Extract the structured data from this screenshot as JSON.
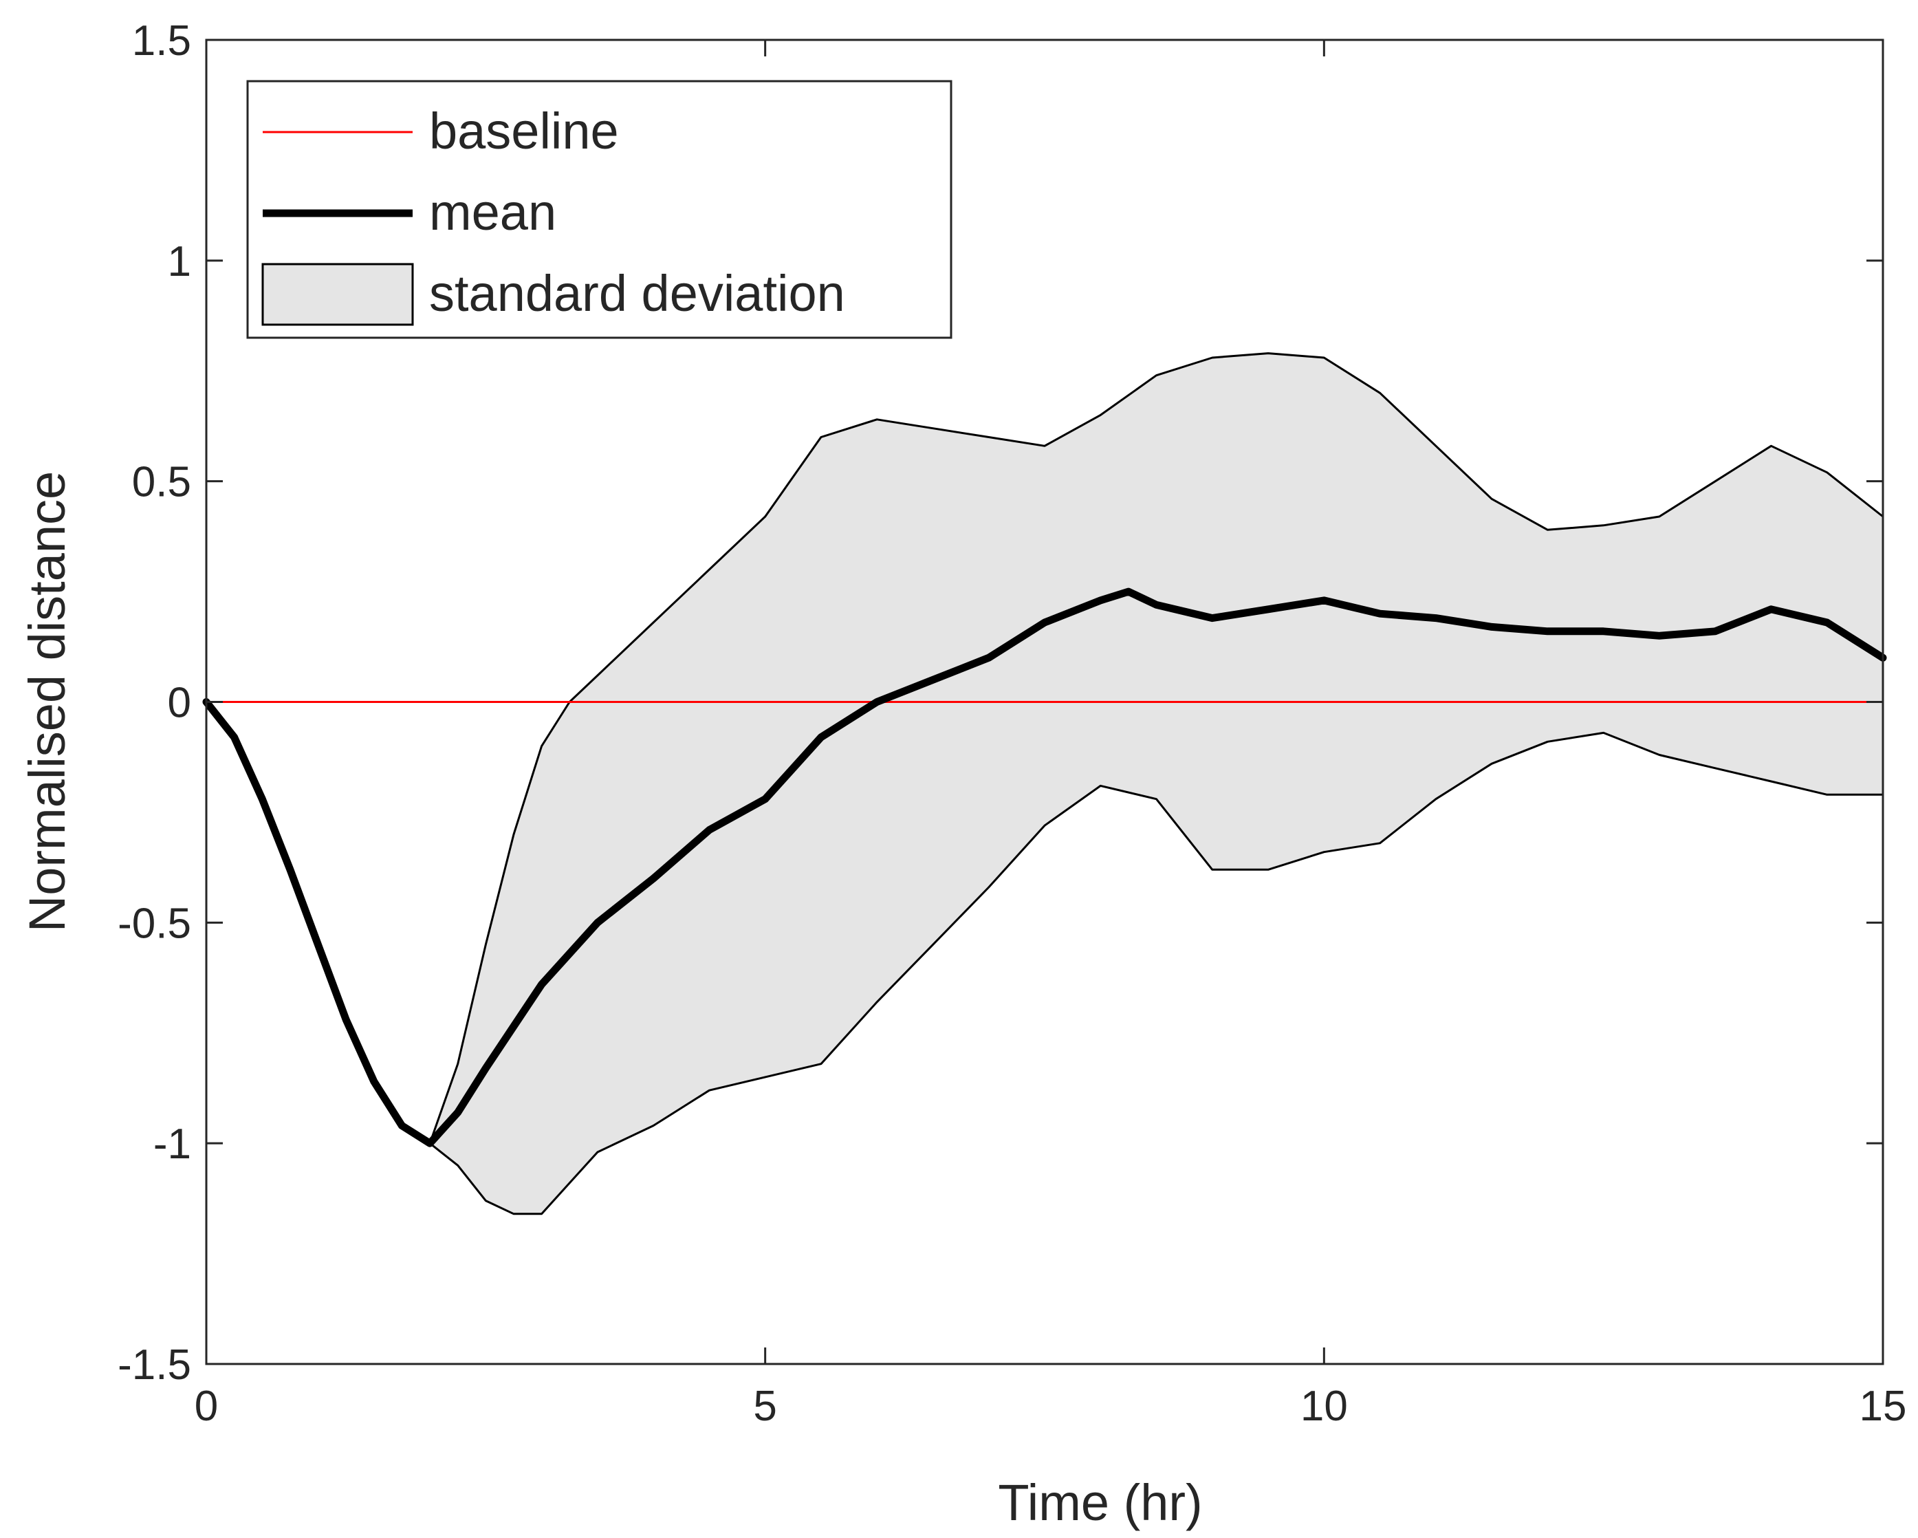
{
  "chart_data": {
    "type": "line",
    "title": "",
    "xlabel": "Time (hr)",
    "ylabel": "Normalised distance",
    "xlim": [
      0,
      15
    ],
    "ylim": [
      -1.5,
      1.5
    ],
    "xticks": [
      0,
      5,
      10,
      15
    ],
    "yticks": [
      -1.5,
      -1,
      -0.5,
      0,
      0.5,
      1,
      1.5
    ],
    "x_tick_labels": [
      "0",
      "5",
      "10",
      "15"
    ],
    "y_tick_labels": [
      "-1.5",
      "-1",
      "-0.5",
      "0",
      "0.5",
      "1",
      "1.5"
    ],
    "grid": false,
    "legend_position": "top-left",
    "legend": [
      "baseline",
      "mean",
      "standard deviation"
    ],
    "series": [
      {
        "name": "baseline",
        "style": "thin-red-line",
        "color": "#ff0000",
        "x": [
          0,
          15
        ],
        "y": [
          0,
          0
        ]
      },
      {
        "name": "mean",
        "style": "thick-black-line",
        "color": "#000000",
        "x": [
          0,
          0.25,
          0.5,
          0.75,
          1.0,
          1.25,
          1.5,
          1.75,
          2.0,
          2.25,
          2.5,
          3.0,
          3.5,
          4.0,
          4.5,
          5.0,
          5.5,
          6.0,
          6.5,
          7.0,
          7.5,
          8.0,
          8.25,
          8.5,
          9.0,
          9.5,
          10.0,
          10.5,
          11.0,
          11.5,
          12.0,
          12.5,
          13.0,
          13.5,
          14.0,
          14.5,
          15.0
        ],
        "y": [
          0,
          -0.08,
          -0.22,
          -0.38,
          -0.55,
          -0.72,
          -0.86,
          -0.96,
          -1.0,
          -0.93,
          -0.83,
          -0.64,
          -0.5,
          -0.4,
          -0.29,
          -0.22,
          -0.08,
          0.0,
          0.05,
          0.1,
          0.18,
          0.23,
          0.25,
          0.22,
          0.19,
          0.21,
          0.23,
          0.2,
          0.19,
          0.17,
          0.16,
          0.16,
          0.15,
          0.16,
          0.21,
          0.18,
          0.1
        ]
      },
      {
        "name": "standard deviation",
        "style": "shaded-band",
        "color": "#e5e5e5",
        "x": [
          0,
          0.25,
          0.5,
          0.75,
          1.0,
          1.25,
          1.5,
          1.75,
          2.0,
          2.25,
          2.5,
          2.75,
          3.0,
          3.25,
          3.5,
          4.0,
          4.5,
          5.0,
          5.5,
          6.0,
          6.5,
          7.0,
          7.5,
          8.0,
          8.5,
          9.0,
          9.5,
          10.0,
          10.5,
          11.0,
          11.5,
          12.0,
          12.5,
          13.0,
          13.5,
          14.0,
          14.5,
          15.0
        ],
        "upper": [
          0,
          -0.08,
          -0.22,
          -0.38,
          -0.55,
          -0.72,
          -0.86,
          -0.96,
          -1.0,
          -0.82,
          -0.55,
          -0.3,
          -0.1,
          0.0,
          0.06,
          0.18,
          0.3,
          0.42,
          0.6,
          0.64,
          0.62,
          0.6,
          0.58,
          0.65,
          0.74,
          0.78,
          0.79,
          0.78,
          0.7,
          0.58,
          0.46,
          0.39,
          0.4,
          0.42,
          0.5,
          0.58,
          0.52,
          0.42
        ],
        "lower": [
          0,
          -0.08,
          -0.22,
          -0.38,
          -0.55,
          -0.72,
          -0.86,
          -0.96,
          -1.0,
          -1.05,
          -1.13,
          -1.16,
          -1.16,
          -1.09,
          -1.02,
          -0.96,
          -0.88,
          -0.85,
          -0.82,
          -0.68,
          -0.55,
          -0.42,
          -0.28,
          -0.19,
          -0.22,
          -0.38,
          -0.38,
          -0.34,
          -0.32,
          -0.22,
          -0.14,
          -0.09,
          -0.07,
          -0.12,
          -0.15,
          -0.18,
          -0.21,
          -0.21
        ]
      }
    ]
  }
}
